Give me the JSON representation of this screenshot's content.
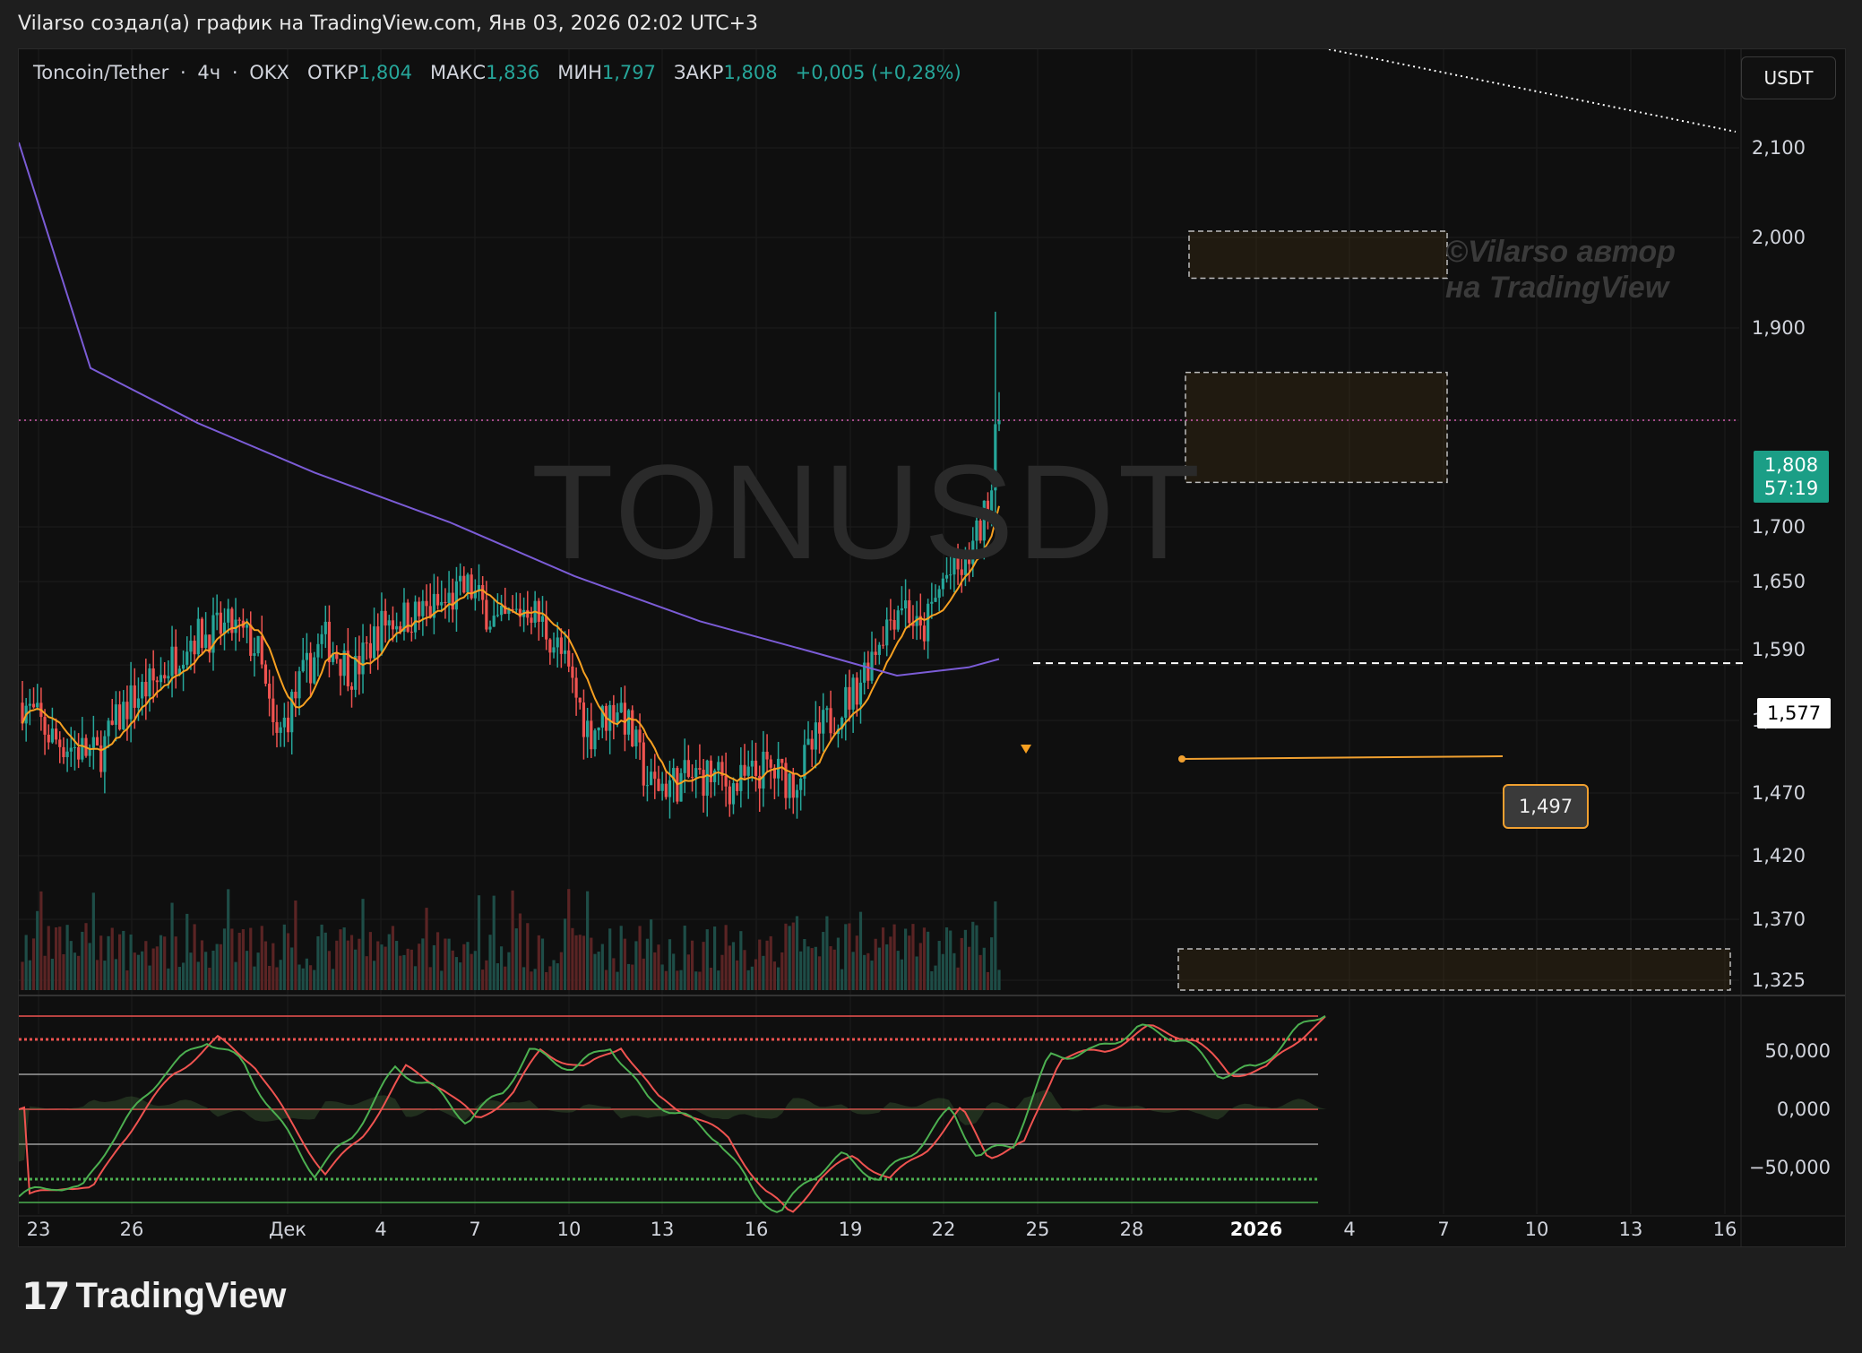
{
  "header": {
    "caption": "Vilarso создал(а) график на TradingView.com, Янв 03, 2026 02:02 UTC+3"
  },
  "legend": {
    "pair": "Toncoin/Tether",
    "interval": "4ч",
    "exchange": "OKX",
    "open_label": "ОТКР",
    "open": "1,804",
    "high_label": "МАКС",
    "high": "1,836",
    "low_label": "МИН",
    "low": "1,797",
    "close_label": "ЗАКР",
    "close": "1,808",
    "change": "+0,005 (+0,28%)"
  },
  "currency_button": "USDT",
  "watermark": "TONUSDT",
  "author_watermark": [
    "©Vilarso автор",
    "на TradingView"
  ],
  "price_tags": {
    "last_price": "1,808",
    "countdown": "57:19",
    "level_line": "1,577",
    "alert": "1,497"
  },
  "footer": {
    "brand": "TradingView"
  },
  "colors": {
    "up": "#26a69a",
    "down": "#ef5350",
    "ma_fast": "#f7a021",
    "ma_slow": "#7b5cd6",
    "last_price_tag": "#1b9e86"
  },
  "chart_data": {
    "type": "candlestick",
    "title": "",
    "price_axis": {
      "ticks": [
        "2,100",
        "2,000",
        "1,900",
        "1,808",
        "1,700",
        "1,650",
        "1,590",
        "1,577",
        "1,530",
        "1,470",
        "1,420",
        "1,370",
        "1,325"
      ]
    },
    "time_axis": {
      "ticks": [
        "23",
        "26",
        "Дек",
        "4",
        "7",
        "10",
        "13",
        "16",
        "19",
        "22",
        "25",
        "28",
        "2026",
        "4",
        "7",
        "10",
        "13",
        "16"
      ]
    },
    "last_close": 1.808,
    "series": [
      {
        "name": "",
        "description": "slow moving average",
        "shape": "descending curve flattening near 1.55-1.57"
      },
      {
        "name": "",
        "description": "fast moving average",
        "shape": "follows price, ends near 1.67"
      }
    ],
    "annotations": {
      "zones": [
        [
          1.955,
          2.005
        ],
        [
          1.745,
          1.82
        ]
      ],
      "horizontal_levels": [
        1.577,
        1.497
      ],
      "last_price_line": 1.808
    },
    "oscillator": {
      "axis_ticks": [
        "50,000",
        "0,000",
        "−50,000"
      ],
      "levels": [
        80,
        60,
        30,
        0,
        -30,
        -60,
        -80
      ]
    }
  }
}
